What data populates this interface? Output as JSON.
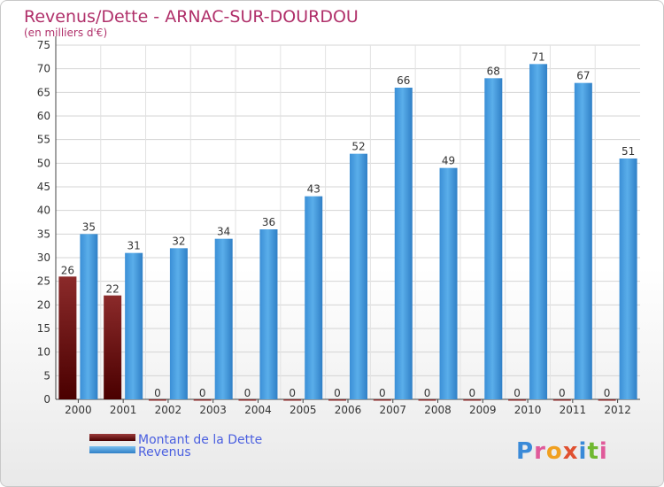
{
  "chart_data": {
    "type": "bar",
    "title": "Revenus/Dette - ARNAC-SUR-DOURDOU",
    "subtitle": "(en milliers d'€)",
    "categories": [
      "2000",
      "2001",
      "2002",
      "2003",
      "2004",
      "2005",
      "2006",
      "2007",
      "2008",
      "2009",
      "2010",
      "2011",
      "2012"
    ],
    "series": [
      {
        "name": "Montant de la Dette",
        "values": [
          26,
          22,
          0,
          0,
          0,
          0,
          0,
          0,
          0,
          0,
          0,
          0,
          0
        ],
        "color": "#6b0a0a"
      },
      {
        "name": "Revenus",
        "values": [
          35,
          31,
          32,
          34,
          36,
          43,
          52,
          66,
          49,
          68,
          71,
          67,
          51
        ],
        "color": "#4fa3e4"
      }
    ],
    "data_labels": {
      "Montant de la Dette": [
        "26",
        "22",
        "0",
        "0",
        "0",
        "0",
        "0",
        "0",
        "0",
        "0",
        "0",
        "0",
        "0"
      ],
      "Revenus": [
        "35",
        "31",
        "32",
        "34",
        "36",
        "43",
        "52",
        "66",
        "49",
        "68",
        "71",
        "67",
        "51"
      ]
    },
    "y_ticks": [
      "0",
      "5",
      "10",
      "15",
      "20",
      "25",
      "30",
      "35",
      "40",
      "45",
      "50",
      "55",
      "60",
      "65",
      "70",
      "75"
    ],
    "ylim": [
      0,
      75
    ],
    "grid": true,
    "legend_position": "bottom-left",
    "title_color": "#b0306a",
    "legend_text_color": "#4a5fe0"
  },
  "logo": {
    "text": "Proxiti"
  }
}
